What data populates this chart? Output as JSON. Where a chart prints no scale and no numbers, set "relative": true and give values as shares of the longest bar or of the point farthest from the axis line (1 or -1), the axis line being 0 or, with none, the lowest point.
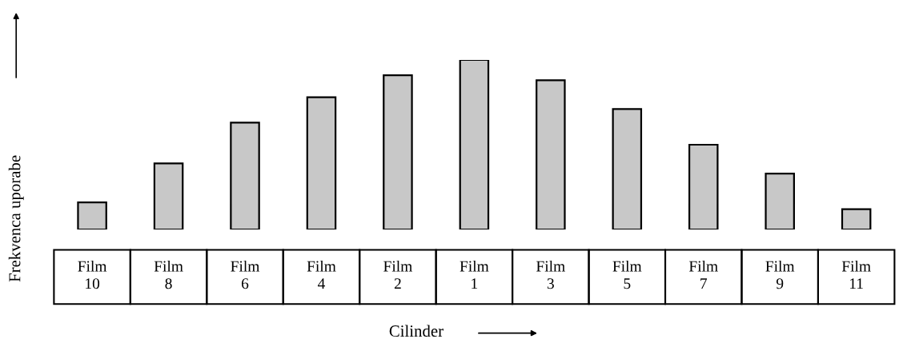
{
  "chart_data": {
    "type": "bar",
    "relative": true,
    "xlabel": "Cilinder",
    "ylabel": "Frekvenca uporabe",
    "categories": [
      "Film 10",
      "Film 8",
      "Film 6",
      "Film 4",
      "Film 2",
      "Film 1",
      "Film 3",
      "Film 5",
      "Film 7",
      "Film 9",
      "Film 11"
    ],
    "values": [
      0.16,
      0.39,
      0.63,
      0.78,
      0.91,
      1,
      0.88,
      0.71,
      0.5,
      0.33,
      0.12
    ],
    "color": "#c8c8c8",
    "grid": false,
    "legend": false
  }
}
